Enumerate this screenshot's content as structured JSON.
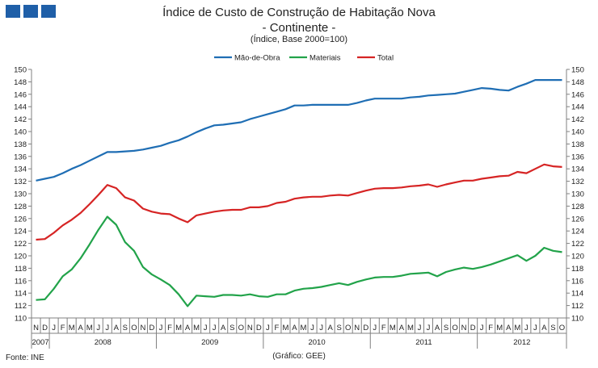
{
  "header": {
    "title": "Índice de Custo de Construção de Habitação Nova",
    "subtitle": "- Continente -",
    "caption": "(Índice, Base 2000=100)"
  },
  "footer": {
    "source": "Fonte: INE",
    "credit": "(Gráfico: GEE)"
  },
  "colors": {
    "logo": "#1f5fa8",
    "mao_de_obra": "#1f6eb4",
    "materiais": "#22a34a",
    "total": "#d62424",
    "axis": "#808080"
  },
  "chart_data": {
    "type": "line",
    "ylim": [
      110,
      150
    ],
    "y_ticks": [
      "110",
      "112",
      "114",
      "116",
      "118",
      "120",
      "122",
      "124",
      "126",
      "128",
      "130",
      "132",
      "134",
      "136",
      "138",
      "140",
      "142",
      "144",
      "146",
      "148",
      "150"
    ],
    "y_ticks_right": [
      "110",
      "112",
      "114",
      "116",
      "118",
      "120",
      "122",
      "124",
      "126",
      "128",
      "130",
      "132",
      "134",
      "136",
      "138",
      "140",
      "142",
      "144",
      "146",
      "148",
      "150"
    ],
    "legend_position": "top-center",
    "grid": false,
    "x_month_labels": [
      "N",
      "D",
      "J",
      "F",
      "M",
      "A",
      "M",
      "J",
      "J",
      "A",
      "S",
      "O",
      "N",
      "D",
      "J",
      "F",
      "M",
      "A",
      "M",
      "J",
      "J",
      "A",
      "S",
      "O",
      "N",
      "D",
      "J",
      "F",
      "M",
      "A",
      "M",
      "J",
      "J",
      "A",
      "S",
      "O",
      "N",
      "D",
      "J",
      "F",
      "M",
      "A",
      "M",
      "J",
      "J",
      "A",
      "S",
      "O",
      "N",
      "D",
      "J",
      "F",
      "M",
      "A",
      "M",
      "J",
      "J",
      "A",
      "S",
      "O"
    ],
    "x_year_labels": [
      "2007",
      "2008",
      "2009",
      "2010",
      "2011",
      "2012"
    ],
    "series": [
      {
        "name": "Mão-de-Obra",
        "color_key": "mao_de_obra",
        "values": [
          132.1,
          132.4,
          132.7,
          133.3,
          134.0,
          134.6,
          135.3,
          136.0,
          136.7,
          136.7,
          136.8,
          136.9,
          137.1,
          137.4,
          137.7,
          138.2,
          138.6,
          139.2,
          139.9,
          140.5,
          141.0,
          141.1,
          141.3,
          141.5,
          142.0,
          142.4,
          142.8,
          143.2,
          143.6,
          144.2,
          144.2,
          144.3,
          144.3,
          144.3,
          144.3,
          144.3,
          144.6,
          145.0,
          145.3,
          145.3,
          145.3,
          145.3,
          145.5,
          145.6,
          145.8,
          145.9,
          146.0,
          146.1,
          146.4,
          146.7,
          147.0,
          146.9,
          146.7,
          146.6,
          147.2,
          147.7,
          148.3,
          148.3,
          148.3,
          148.3
        ]
      },
      {
        "name": "Materiais",
        "color_key": "materiais",
        "values": [
          112.9,
          113.0,
          114.7,
          116.7,
          117.8,
          119.6,
          121.8,
          124.2,
          126.3,
          125.0,
          122.2,
          120.8,
          118.2,
          117.0,
          116.2,
          115.3,
          113.8,
          111.9,
          113.6,
          113.5,
          113.4,
          113.7,
          113.7,
          113.6,
          113.8,
          113.5,
          113.4,
          113.8,
          113.8,
          114.4,
          114.7,
          114.8,
          115.0,
          115.3,
          115.6,
          115.3,
          115.8,
          116.2,
          116.5,
          116.6,
          116.6,
          116.8,
          117.1,
          117.2,
          117.3,
          116.7,
          117.4,
          117.8,
          118.1,
          117.9,
          118.2,
          118.6,
          119.1,
          119.6,
          120.1,
          119.2,
          120.0,
          121.3,
          120.8,
          120.6
        ]
      },
      {
        "name": "Total",
        "color_key": "total",
        "values": [
          122.6,
          122.7,
          123.7,
          124.9,
          125.8,
          126.9,
          128.3,
          129.8,
          131.4,
          130.9,
          129.4,
          128.9,
          127.6,
          127.1,
          126.8,
          126.7,
          126.0,
          125.4,
          126.5,
          126.8,
          127.1,
          127.3,
          127.4,
          127.4,
          127.8,
          127.8,
          128.0,
          128.5,
          128.7,
          129.2,
          129.4,
          129.5,
          129.5,
          129.7,
          129.8,
          129.7,
          130.1,
          130.5,
          130.8,
          130.9,
          130.9,
          131.0,
          131.2,
          131.3,
          131.5,
          131.1,
          131.5,
          131.8,
          132.1,
          132.1,
          132.4,
          132.6,
          132.8,
          132.9,
          133.5,
          133.3,
          134.0,
          134.7,
          134.4,
          134.3
        ]
      }
    ]
  }
}
